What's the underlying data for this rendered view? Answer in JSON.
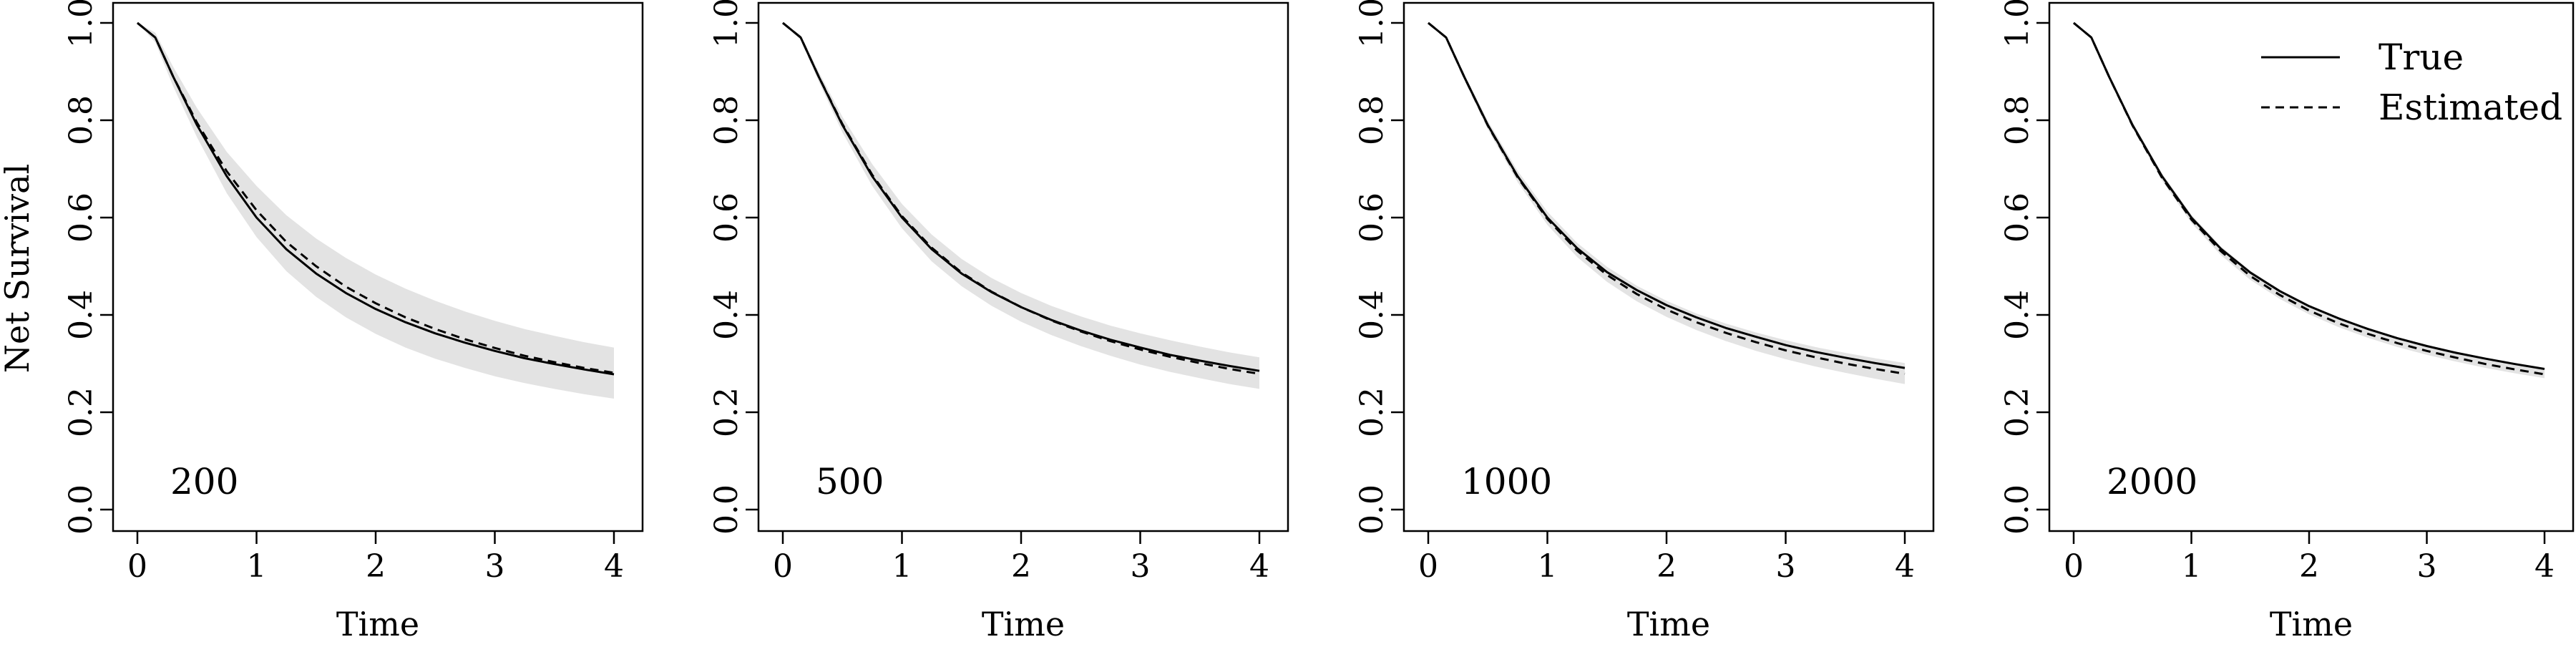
{
  "figure": {
    "ylabel": "Net Survival",
    "legend": {
      "placement": "top-right of last panel",
      "entries": [
        {
          "label": "True",
          "style": "solid"
        },
        {
          "label": "Estimated",
          "style": "dashed"
        }
      ]
    },
    "colors": {
      "line": "#000000",
      "band": "#e3e3e3",
      "frame": "#000000"
    }
  },
  "chart_data": [
    {
      "type": "line",
      "panel_label": "200",
      "xlabel": "Time",
      "xlim": [
        0,
        4
      ],
      "ylim": [
        0,
        1
      ],
      "xticks": [
        "0",
        "1",
        "2",
        "3",
        "4"
      ],
      "yticks": [
        "0.0",
        "0.2",
        "0.4",
        "0.6",
        "0.8",
        "1.0"
      ],
      "x": [
        0,
        0.15,
        0.3,
        0.5,
        0.75,
        1,
        1.25,
        1.5,
        1.75,
        2,
        2.25,
        2.5,
        2.75,
        3,
        3.25,
        3.5,
        3.75,
        4
      ],
      "series": [
        {
          "name": "True",
          "style": "solid",
          "values": [
            1.0,
            0.97,
            0.89,
            0.79,
            0.685,
            0.6,
            0.535,
            0.485,
            0.445,
            0.412,
            0.385,
            0.362,
            0.343,
            0.326,
            0.311,
            0.299,
            0.288,
            0.278
          ]
        },
        {
          "name": "Estimated",
          "style": "dashed",
          "values": [
            1.0,
            0.97,
            0.89,
            0.795,
            0.695,
            0.615,
            0.55,
            0.5,
            0.458,
            0.424,
            0.395,
            0.371,
            0.35,
            0.332,
            0.316,
            0.303,
            0.291,
            0.281
          ]
        }
      ],
      "band": {
        "lower": [
          1.0,
          0.96,
          0.87,
          0.765,
          0.65,
          0.56,
          0.49,
          0.437,
          0.395,
          0.361,
          0.333,
          0.31,
          0.291,
          0.274,
          0.26,
          0.248,
          0.237,
          0.228
        ],
        "upper": [
          1.0,
          0.98,
          0.91,
          0.825,
          0.735,
          0.665,
          0.605,
          0.557,
          0.517,
          0.483,
          0.454,
          0.429,
          0.407,
          0.388,
          0.371,
          0.357,
          0.344,
          0.333
        ]
      }
    },
    {
      "type": "line",
      "panel_label": "500",
      "xlabel": "Time",
      "xlim": [
        0,
        4
      ],
      "ylim": [
        0,
        1
      ],
      "xticks": [
        "0",
        "1",
        "2",
        "3",
        "4"
      ],
      "yticks": [
        "0.0",
        "0.2",
        "0.4",
        "0.6",
        "0.8",
        "1.0"
      ],
      "x": [
        0,
        0.15,
        0.3,
        0.5,
        0.75,
        1,
        1.25,
        1.5,
        1.75,
        2,
        2.25,
        2.5,
        2.75,
        3,
        3.25,
        3.5,
        3.75,
        4
      ],
      "series": [
        {
          "name": "True",
          "style": "solid",
          "values": [
            1.0,
            0.97,
            0.89,
            0.79,
            0.685,
            0.6,
            0.535,
            0.485,
            0.447,
            0.416,
            0.39,
            0.368,
            0.349,
            0.333,
            0.318,
            0.306,
            0.295,
            0.285
          ]
        },
        {
          "name": "Estimated",
          "style": "dashed",
          "values": [
            1.0,
            0.97,
            0.89,
            0.792,
            0.688,
            0.603,
            0.538,
            0.487,
            0.448,
            0.416,
            0.389,
            0.366,
            0.346,
            0.329,
            0.314,
            0.301,
            0.289,
            0.279
          ]
        }
      ],
      "band": {
        "lower": [
          1.0,
          0.965,
          0.88,
          0.775,
          0.665,
          0.578,
          0.51,
          0.459,
          0.419,
          0.386,
          0.359,
          0.336,
          0.316,
          0.298,
          0.283,
          0.27,
          0.258,
          0.248
        ],
        "upper": [
          1.0,
          0.975,
          0.9,
          0.807,
          0.71,
          0.628,
          0.565,
          0.515,
          0.476,
          0.445,
          0.419,
          0.397,
          0.378,
          0.362,
          0.348,
          0.335,
          0.323,
          0.313
        ]
      }
    },
    {
      "type": "line",
      "panel_label": "1000",
      "xlabel": "Time",
      "xlim": [
        0,
        4
      ],
      "ylim": [
        0,
        1
      ],
      "xticks": [
        "0",
        "1",
        "2",
        "3",
        "4"
      ],
      "yticks": [
        "0.0",
        "0.2",
        "0.4",
        "0.6",
        "0.8",
        "1.0"
      ],
      "x": [
        0,
        0.15,
        0.3,
        0.5,
        0.75,
        1,
        1.25,
        1.5,
        1.75,
        2,
        2.25,
        2.5,
        2.75,
        3,
        3.25,
        3.5,
        3.75,
        4
      ],
      "series": [
        {
          "name": "True",
          "style": "solid",
          "values": [
            1.0,
            0.97,
            0.89,
            0.79,
            0.685,
            0.6,
            0.537,
            0.488,
            0.451,
            0.42,
            0.395,
            0.373,
            0.355,
            0.338,
            0.324,
            0.312,
            0.301,
            0.291
          ]
        },
        {
          "name": "Estimated",
          "style": "dashed",
          "values": [
            1.0,
            0.97,
            0.89,
            0.789,
            0.683,
            0.597,
            0.532,
            0.482,
            0.443,
            0.411,
            0.385,
            0.363,
            0.344,
            0.327,
            0.313,
            0.3,
            0.289,
            0.279
          ]
        }
      ],
      "band": {
        "lower": [
          1.0,
          0.967,
          0.884,
          0.781,
          0.673,
          0.585,
          0.519,
          0.468,
          0.428,
          0.396,
          0.369,
          0.346,
          0.326,
          0.309,
          0.294,
          0.281,
          0.269,
          0.258
        ],
        "upper": [
          1.0,
          0.973,
          0.896,
          0.799,
          0.696,
          0.612,
          0.548,
          0.499,
          0.46,
          0.429,
          0.403,
          0.382,
          0.364,
          0.348,
          0.334,
          0.322,
          0.311,
          0.301
        ]
      }
    },
    {
      "type": "line",
      "panel_label": "2000",
      "xlabel": "Time",
      "xlim": [
        0,
        4
      ],
      "ylim": [
        0,
        1
      ],
      "xticks": [
        "0",
        "1",
        "2",
        "3",
        "4"
      ],
      "yticks": [
        "0.0",
        "0.2",
        "0.4",
        "0.6",
        "0.8",
        "1.0"
      ],
      "x": [
        0,
        0.15,
        0.3,
        0.5,
        0.75,
        1,
        1.25,
        1.5,
        1.75,
        2,
        2.25,
        2.5,
        2.75,
        3,
        3.25,
        3.5,
        3.75,
        4
      ],
      "series": [
        {
          "name": "True",
          "style": "solid",
          "values": [
            1.0,
            0.97,
            0.89,
            0.79,
            0.685,
            0.6,
            0.536,
            0.487,
            0.449,
            0.418,
            0.393,
            0.371,
            0.352,
            0.336,
            0.322,
            0.31,
            0.299,
            0.289
          ]
        },
        {
          "name": "Estimated",
          "style": "dashed",
          "values": [
            1.0,
            0.97,
            0.89,
            0.789,
            0.682,
            0.596,
            0.531,
            0.48,
            0.441,
            0.409,
            0.383,
            0.361,
            0.342,
            0.326,
            0.312,
            0.299,
            0.288,
            0.278
          ]
        }
      ],
      "band": {
        "lower": [
          1.0,
          0.968,
          0.886,
          0.784,
          0.676,
          0.589,
          0.523,
          0.472,
          0.433,
          0.401,
          0.375,
          0.353,
          0.334,
          0.318,
          0.304,
          0.291,
          0.28,
          0.27
        ],
        "upper": [
          1.0,
          0.972,
          0.894,
          0.796,
          0.691,
          0.606,
          0.541,
          0.491,
          0.452,
          0.421,
          0.395,
          0.373,
          0.354,
          0.338,
          0.324,
          0.311,
          0.3,
          0.29
        ]
      }
    }
  ]
}
